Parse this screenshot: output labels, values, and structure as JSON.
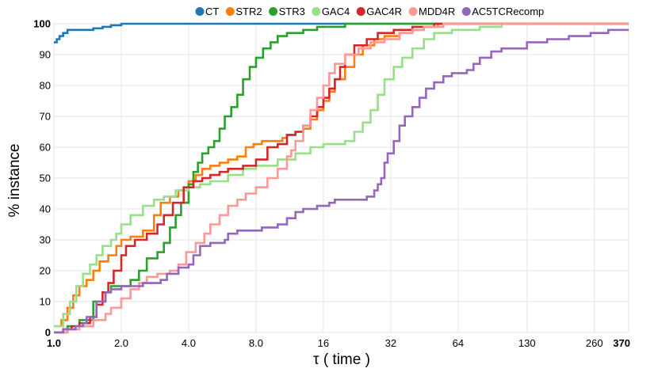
{
  "chart_data": {
    "type": "line",
    "step": true,
    "xscale": "log2",
    "xlabel": "τ ( time )",
    "ylabel": "% instance",
    "xlim": [
      1.0,
      370
    ],
    "ylim": [
      0,
      100
    ],
    "xticks": [
      {
        "value": 1.0,
        "label": "1.0",
        "bold": true
      },
      {
        "value": 2.0,
        "label": "2.0",
        "bold": false
      },
      {
        "value": 4.0,
        "label": "4.0",
        "bold": false
      },
      {
        "value": 8.0,
        "label": "8.0",
        "bold": false
      },
      {
        "value": 16,
        "label": "16",
        "bold": false
      },
      {
        "value": 32,
        "label": "32",
        "bold": false
      },
      {
        "value": 64,
        "label": "64",
        "bold": false
      },
      {
        "value": 130,
        "label": "130",
        "bold": false
      },
      {
        "value": 260,
        "label": "260",
        "bold": false
      },
      {
        "value": 370,
        "label": "370",
        "bold": true
      }
    ],
    "yticks": [
      {
        "value": 0,
        "label": "0",
        "bold": true
      },
      {
        "value": 10,
        "label": "10",
        "bold": false
      },
      {
        "value": 20,
        "label": "20",
        "bold": false
      },
      {
        "value": 30,
        "label": "30",
        "bold": false
      },
      {
        "value": 40,
        "label": "40",
        "bold": false
      },
      {
        "value": 50,
        "label": "50",
        "bold": false
      },
      {
        "value": 60,
        "label": "60",
        "bold": false
      },
      {
        "value": 70,
        "label": "70",
        "bold": false
      },
      {
        "value": 80,
        "label": "80",
        "bold": false
      },
      {
        "value": 90,
        "label": "90",
        "bold": false
      },
      {
        "value": 100,
        "label": "100",
        "bold": true
      }
    ],
    "legend_position": "top-right",
    "series": [
      {
        "name": "CT",
        "color": "#1f77b4",
        "points": [
          [
            1.0,
            94
          ],
          [
            1.03,
            95
          ],
          [
            1.06,
            96
          ],
          [
            1.1,
            97
          ],
          [
            1.15,
            98
          ],
          [
            1.3,
            98
          ],
          [
            1.5,
            98.5
          ],
          [
            1.65,
            99
          ],
          [
            1.8,
            99.5
          ],
          [
            2.0,
            100
          ],
          [
            370,
            100
          ]
        ]
      },
      {
        "name": "STR2",
        "color": "#ff7f0e",
        "points": [
          [
            1.0,
            2
          ],
          [
            1.08,
            4
          ],
          [
            1.15,
            8
          ],
          [
            1.22,
            12
          ],
          [
            1.3,
            15
          ],
          [
            1.4,
            17
          ],
          [
            1.5,
            20
          ],
          [
            1.6,
            23
          ],
          [
            1.75,
            25
          ],
          [
            1.9,
            28
          ],
          [
            2.0,
            30
          ],
          [
            2.2,
            31
          ],
          [
            2.5,
            33
          ],
          [
            2.8,
            38
          ],
          [
            3.0,
            42
          ],
          [
            3.3,
            44
          ],
          [
            3.6,
            46
          ],
          [
            4.0,
            49
          ],
          [
            4.3,
            51
          ],
          [
            4.6,
            53
          ],
          [
            5.0,
            54
          ],
          [
            5.5,
            55
          ],
          [
            6.0,
            56
          ],
          [
            6.6,
            57
          ],
          [
            7.2,
            60
          ],
          [
            7.8,
            61
          ],
          [
            8.5,
            62
          ],
          [
            9.5,
            62
          ],
          [
            10.5,
            63
          ],
          [
            11,
            64
          ],
          [
            12,
            65
          ],
          [
            13,
            66
          ],
          [
            14,
            69
          ],
          [
            15,
            72
          ],
          [
            16,
            75
          ],
          [
            17,
            78
          ],
          [
            18,
            82
          ],
          [
            20,
            86
          ],
          [
            22,
            90
          ],
          [
            24,
            93
          ],
          [
            27,
            95
          ],
          [
            30,
            96
          ],
          [
            35,
            97
          ],
          [
            40,
            98
          ],
          [
            45,
            99
          ],
          [
            52,
            100
          ],
          [
            370,
            100
          ]
        ]
      },
      {
        "name": "STR3",
        "color": "#2ca02c",
        "points": [
          [
            1.0,
            0
          ],
          [
            1.15,
            2
          ],
          [
            1.3,
            4
          ],
          [
            1.5,
            10
          ],
          [
            1.7,
            13
          ],
          [
            1.8,
            15
          ],
          [
            2.0,
            15
          ],
          [
            2.2,
            17
          ],
          [
            2.4,
            20
          ],
          [
            2.6,
            24
          ],
          [
            2.9,
            26
          ],
          [
            3.1,
            29
          ],
          [
            3.3,
            34
          ],
          [
            3.5,
            38
          ],
          [
            3.7,
            42
          ],
          [
            4.0,
            48
          ],
          [
            4.2,
            52
          ],
          [
            4.4,
            55
          ],
          [
            4.6,
            58
          ],
          [
            4.9,
            60
          ],
          [
            5.2,
            62
          ],
          [
            5.5,
            66
          ],
          [
            5.8,
            70
          ],
          [
            6.2,
            73
          ],
          [
            6.6,
            77
          ],
          [
            7.0,
            82
          ],
          [
            7.5,
            86
          ],
          [
            8.0,
            89
          ],
          [
            8.6,
            92
          ],
          [
            9.3,
            94
          ],
          [
            10,
            96
          ],
          [
            11,
            97
          ],
          [
            13,
            98
          ],
          [
            15,
            99
          ],
          [
            20,
            100
          ],
          [
            370,
            100
          ]
        ]
      },
      {
        "name": "GAC4",
        "color": "#98df8a",
        "points": [
          [
            1.0,
            2
          ],
          [
            1.1,
            6
          ],
          [
            1.18,
            10
          ],
          [
            1.26,
            15
          ],
          [
            1.35,
            19
          ],
          [
            1.45,
            22
          ],
          [
            1.55,
            25
          ],
          [
            1.65,
            28
          ],
          [
            1.8,
            30
          ],
          [
            1.9,
            32
          ],
          [
            2.0,
            35
          ],
          [
            2.2,
            38
          ],
          [
            2.5,
            41
          ],
          [
            2.8,
            43
          ],
          [
            3.1,
            44
          ],
          [
            3.5,
            46
          ],
          [
            4.0,
            47
          ],
          [
            4.5,
            48
          ],
          [
            5.0,
            49
          ],
          [
            6.0,
            51
          ],
          [
            7.0,
            53
          ],
          [
            8.0,
            54
          ],
          [
            10,
            56
          ],
          [
            12,
            58
          ],
          [
            14,
            60
          ],
          [
            16,
            61
          ],
          [
            20,
            62
          ],
          [
            22,
            65
          ],
          [
            24,
            68
          ],
          [
            26,
            72
          ],
          [
            28,
            77
          ],
          [
            30,
            82
          ],
          [
            33,
            86
          ],
          [
            36,
            89
          ],
          [
            40,
            92
          ],
          [
            45,
            95
          ],
          [
            50,
            97
          ],
          [
            60,
            98
          ],
          [
            80,
            99
          ],
          [
            100,
            100
          ],
          [
            370,
            100
          ]
        ]
      },
      {
        "name": "GAC4R",
        "color": "#d62728",
        "points": [
          [
            1.0,
            0
          ],
          [
            1.1,
            1
          ],
          [
            1.2,
            2
          ],
          [
            1.3,
            3
          ],
          [
            1.45,
            5
          ],
          [
            1.55,
            9
          ],
          [
            1.65,
            13
          ],
          [
            1.75,
            16
          ],
          [
            1.85,
            20
          ],
          [
            2.0,
            25
          ],
          [
            2.1,
            28
          ],
          [
            2.3,
            30
          ],
          [
            2.6,
            32
          ],
          [
            2.9,
            35
          ],
          [
            3.1,
            38
          ],
          [
            3.4,
            42
          ],
          [
            3.8,
            47
          ],
          [
            4.2,
            49
          ],
          [
            4.6,
            50
          ],
          [
            5.0,
            51
          ],
          [
            5.5,
            52
          ],
          [
            6.0,
            53
          ],
          [
            7.0,
            54
          ],
          [
            8.0,
            56
          ],
          [
            9.0,
            60
          ],
          [
            10,
            61
          ],
          [
            11,
            64
          ],
          [
            12,
            65
          ],
          [
            13,
            67
          ],
          [
            14,
            70
          ],
          [
            15,
            73
          ],
          [
            16,
            76
          ],
          [
            17,
            79
          ],
          [
            18,
            82
          ],
          [
            19,
            86
          ],
          [
            20,
            90
          ],
          [
            22,
            93
          ],
          [
            25,
            95
          ],
          [
            28,
            97
          ],
          [
            33,
            98
          ],
          [
            40,
            99
          ],
          [
            50,
            100
          ],
          [
            370,
            100
          ]
        ]
      },
      {
        "name": "MDD4R",
        "color": "#ff9896",
        "points": [
          [
            1.0,
            0
          ],
          [
            1.15,
            1
          ],
          [
            1.3,
            2
          ],
          [
            1.5,
            4
          ],
          [
            1.7,
            6
          ],
          [
            1.8,
            8
          ],
          [
            2.0,
            11
          ],
          [
            2.2,
            14
          ],
          [
            2.4,
            16
          ],
          [
            2.6,
            18
          ],
          [
            2.9,
            19
          ],
          [
            3.3,
            20
          ],
          [
            3.6,
            22
          ],
          [
            3.9,
            26
          ],
          [
            4.3,
            29
          ],
          [
            4.7,
            32
          ],
          [
            5.0,
            35
          ],
          [
            5.5,
            38
          ],
          [
            6.0,
            41
          ],
          [
            6.6,
            43
          ],
          [
            7.2,
            45
          ],
          [
            8.0,
            47
          ],
          [
            9.0,
            50
          ],
          [
            10,
            53
          ],
          [
            11,
            57
          ],
          [
            11.5,
            59
          ],
          [
            12,
            62
          ],
          [
            13,
            67
          ],
          [
            14,
            72
          ],
          [
            15,
            76
          ],
          [
            16,
            80
          ],
          [
            17,
            84
          ],
          [
            18,
            87
          ],
          [
            20,
            90
          ],
          [
            23,
            92
          ],
          [
            26,
            94
          ],
          [
            30,
            95
          ],
          [
            35,
            97
          ],
          [
            40,
            98
          ],
          [
            45,
            99
          ],
          [
            55,
            100
          ],
          [
            370,
            100
          ]
        ]
      },
      {
        "name": "AC5TCRecomp",
        "color": "#9467bd",
        "points": [
          [
            1.0,
            0
          ],
          [
            1.1,
            1
          ],
          [
            1.25,
            2
          ],
          [
            1.35,
            3
          ],
          [
            1.4,
            5
          ],
          [
            1.55,
            10
          ],
          [
            1.7,
            13
          ],
          [
            1.8,
            14
          ],
          [
            2.0,
            15
          ],
          [
            2.5,
            16
          ],
          [
            3.0,
            17
          ],
          [
            3.2,
            19
          ],
          [
            3.6,
            21
          ],
          [
            4.0,
            22
          ],
          [
            4.2,
            25
          ],
          [
            4.5,
            28
          ],
          [
            5.0,
            29
          ],
          [
            5.8,
            30
          ],
          [
            6.0,
            32
          ],
          [
            6.6,
            33
          ],
          [
            7.5,
            33
          ],
          [
            8.5,
            34
          ],
          [
            10,
            35
          ],
          [
            11,
            37
          ],
          [
            12,
            39
          ],
          [
            13,
            40
          ],
          [
            15,
            41
          ],
          [
            17,
            42
          ],
          [
            18,
            43
          ],
          [
            20,
            43
          ],
          [
            25,
            44
          ],
          [
            27,
            46
          ],
          [
            28,
            48
          ],
          [
            29,
            50
          ],
          [
            30,
            55
          ],
          [
            31,
            58
          ],
          [
            33,
            62
          ],
          [
            35,
            67
          ],
          [
            37,
            70
          ],
          [
            40,
            73
          ],
          [
            43,
            76
          ],
          [
            46,
            79
          ],
          [
            50,
            81
          ],
          [
            55,
            83
          ],
          [
            60,
            84
          ],
          [
            70,
            85
          ],
          [
            75,
            87
          ],
          [
            80,
            89
          ],
          [
            90,
            91
          ],
          [
            100,
            92
          ],
          [
            130,
            94
          ],
          [
            160,
            95
          ],
          [
            200,
            96
          ],
          [
            250,
            97
          ],
          [
            300,
            98
          ],
          [
            370,
            98
          ]
        ]
      }
    ]
  }
}
